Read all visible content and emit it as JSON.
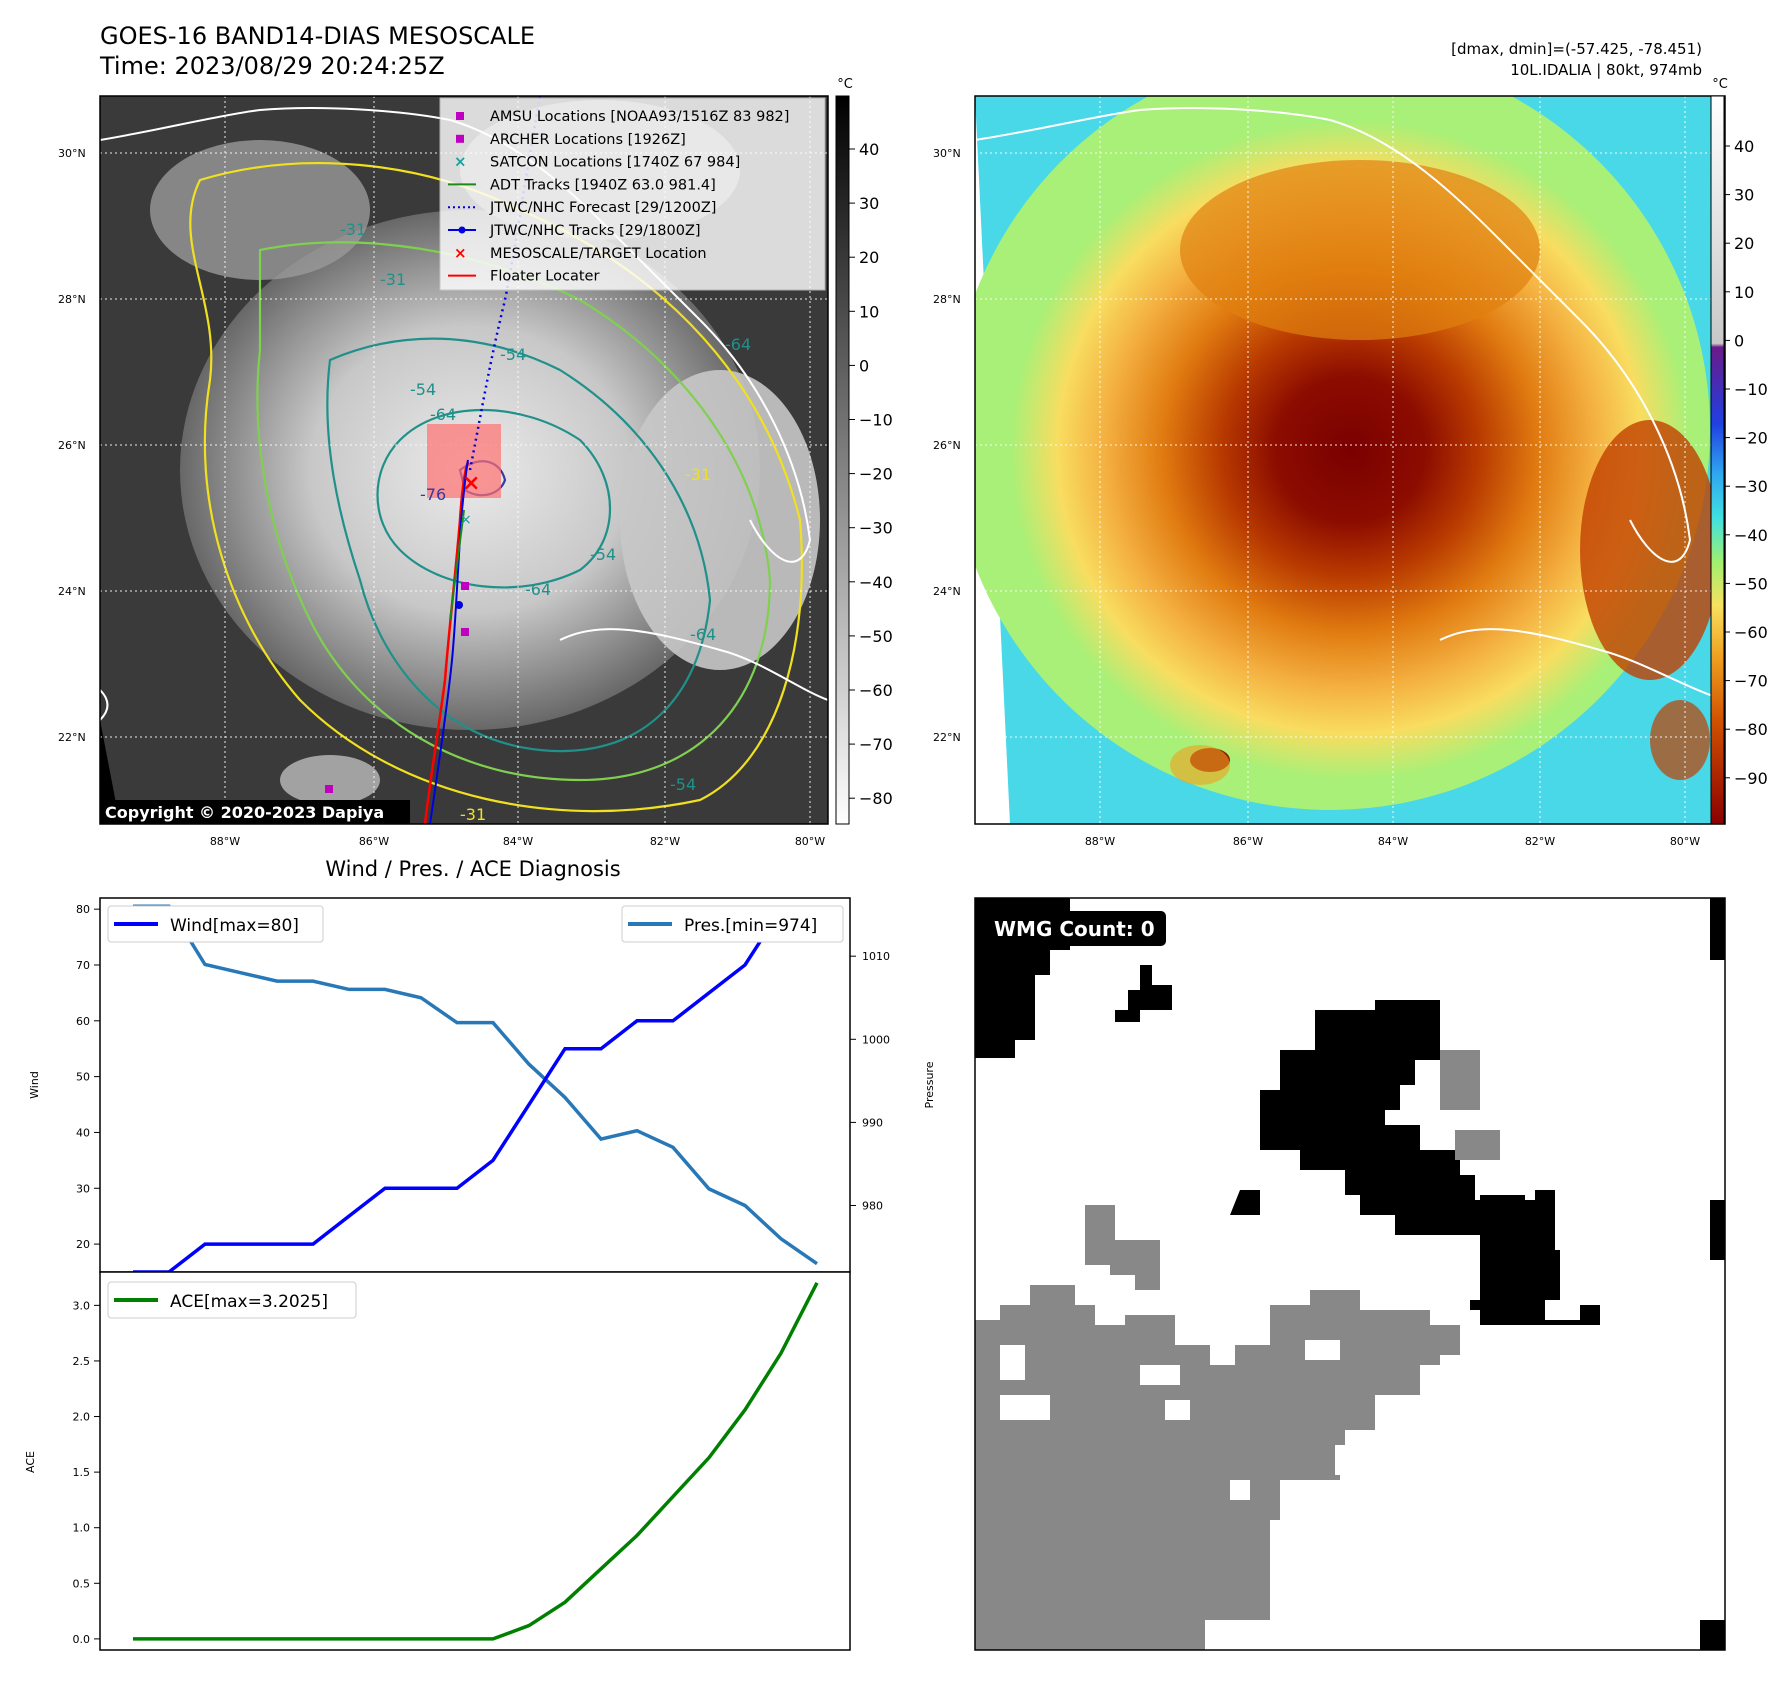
{
  "header": {
    "title": "GOES-16 BAND14-DIAS MESOSCALE",
    "time": "Time: 2023/08/29 20:24:25Z",
    "dmax_dmin": "[dmax, dmin]=(-57.425, -78.451)",
    "storm_info": "10L.IDALIA | 80kt, 974mb",
    "copyright": "Copyright © 2020-2023 Dapiya",
    "wmg_label": "WMG Count: 0",
    "colorbar_unit": "°C"
  },
  "colors": {
    "amsu": "#c000c0",
    "archer": "#c000c0",
    "satcon": "#18a0a0",
    "adt": "#1a8a1a",
    "forecast": "#0000e0",
    "tracks": "#0000e0",
    "target": "#ff0000",
    "floater": "#ff0000",
    "wind": "#0000ff",
    "pressure": "#2878b8",
    "ace": "#008000",
    "contour_yellow": "#f0e020",
    "contour_lightgreen": "#80d050",
    "contour_teal": "#20908a"
  },
  "map": {
    "lat_labels": [
      "30°N",
      "28°N",
      "26°N",
      "24°N",
      "22°N"
    ],
    "lon_labels": [
      "88°W",
      "86°W",
      "84°W",
      "82°W",
      "80°W"
    ],
    "contour_labels": [
      "-31",
      "-31",
      "-54",
      "-54",
      "-64",
      "-64",
      "-76",
      "-64",
      "-64",
      "-54",
      "-31",
      "-54",
      "-31"
    ]
  },
  "legend": [
    {
      "label": "AMSU Locations [NOAA93/1516Z 83 982]",
      "marker": "square",
      "color": "#c000c0"
    },
    {
      "label": "ARCHER Locations [1926Z]",
      "marker": "square",
      "color": "#c000c0"
    },
    {
      "label": "SATCON Locations [1740Z 67 984]",
      "marker": "x",
      "color": "#18a0a0"
    },
    {
      "label": "ADT Tracks [1940Z 63.0 981.4]",
      "marker": "line",
      "color": "#1a8a1a"
    },
    {
      "label": "JTWC/NHC Forecast [29/1200Z]",
      "marker": "dotted",
      "color": "#0000e0"
    },
    {
      "label": "JTWC/NHC Tracks [29/1800Z]",
      "marker": "line-dot",
      "color": "#0000e0"
    },
    {
      "label": "MESOSCALE/TARGET Location",
      "marker": "x",
      "color": "#ff0000"
    },
    {
      "label": "Floater Locater",
      "marker": "line",
      "color": "#ff0000"
    }
  ],
  "colorbar_left": {
    "ticks": [
      "40",
      "30",
      "20",
      "10",
      "0",
      "−10",
      "−20",
      "−30",
      "−40",
      "−50",
      "−60",
      "−70",
      "−80"
    ]
  },
  "colorbar_right": {
    "ticks": [
      "40",
      "30",
      "20",
      "10",
      "0",
      "−10",
      "−20",
      "−30",
      "−40",
      "−50",
      "−60",
      "−70",
      "−80",
      "−90"
    ]
  },
  "chart_data": [
    {
      "type": "line",
      "title": "Wind / Pres. / ACE Diagnosis",
      "ylabel": "Wind",
      "ylabel2": "Pressure",
      "ylim": [
        15,
        82
      ],
      "ylim2": [
        972,
        1017
      ],
      "yticks": [
        20,
        30,
        40,
        50,
        60,
        70,
        80
      ],
      "yticks2": [
        980,
        990,
        1000,
        1010
      ],
      "series": [
        {
          "name": "Wind[max=80]",
          "axis": "left",
          "values": [
            15,
            15,
            20,
            20,
            20,
            20,
            25,
            30,
            30,
            30,
            35,
            45,
            55,
            55,
            60,
            60,
            65,
            70,
            80
          ]
        },
        {
          "name": "Pres.[min=974]",
          "axis": "right",
          "values": [
            1016,
            1016,
            1009,
            1008,
            1007,
            1007,
            1006,
            1006,
            1005,
            1002,
            1002,
            997,
            993,
            988,
            989,
            987,
            982,
            980,
            976,
            973
          ]
        }
      ],
      "pressure_index_offset": 0
    },
    {
      "type": "line",
      "ylabel": "ACE",
      "ylim": [
        -0.1,
        3.3
      ],
      "yticks": [
        0.0,
        0.5,
        1.0,
        1.5,
        2.0,
        2.5,
        3.0
      ],
      "series": [
        {
          "name": "ACE[max=3.2025]",
          "values": [
            0,
            0,
            0,
            0,
            0,
            0,
            0,
            0,
            0,
            0,
            0,
            0.12,
            0.33,
            0.63,
            0.93,
            1.28,
            1.63,
            2.06,
            2.57,
            3.2025
          ]
        }
      ]
    }
  ]
}
